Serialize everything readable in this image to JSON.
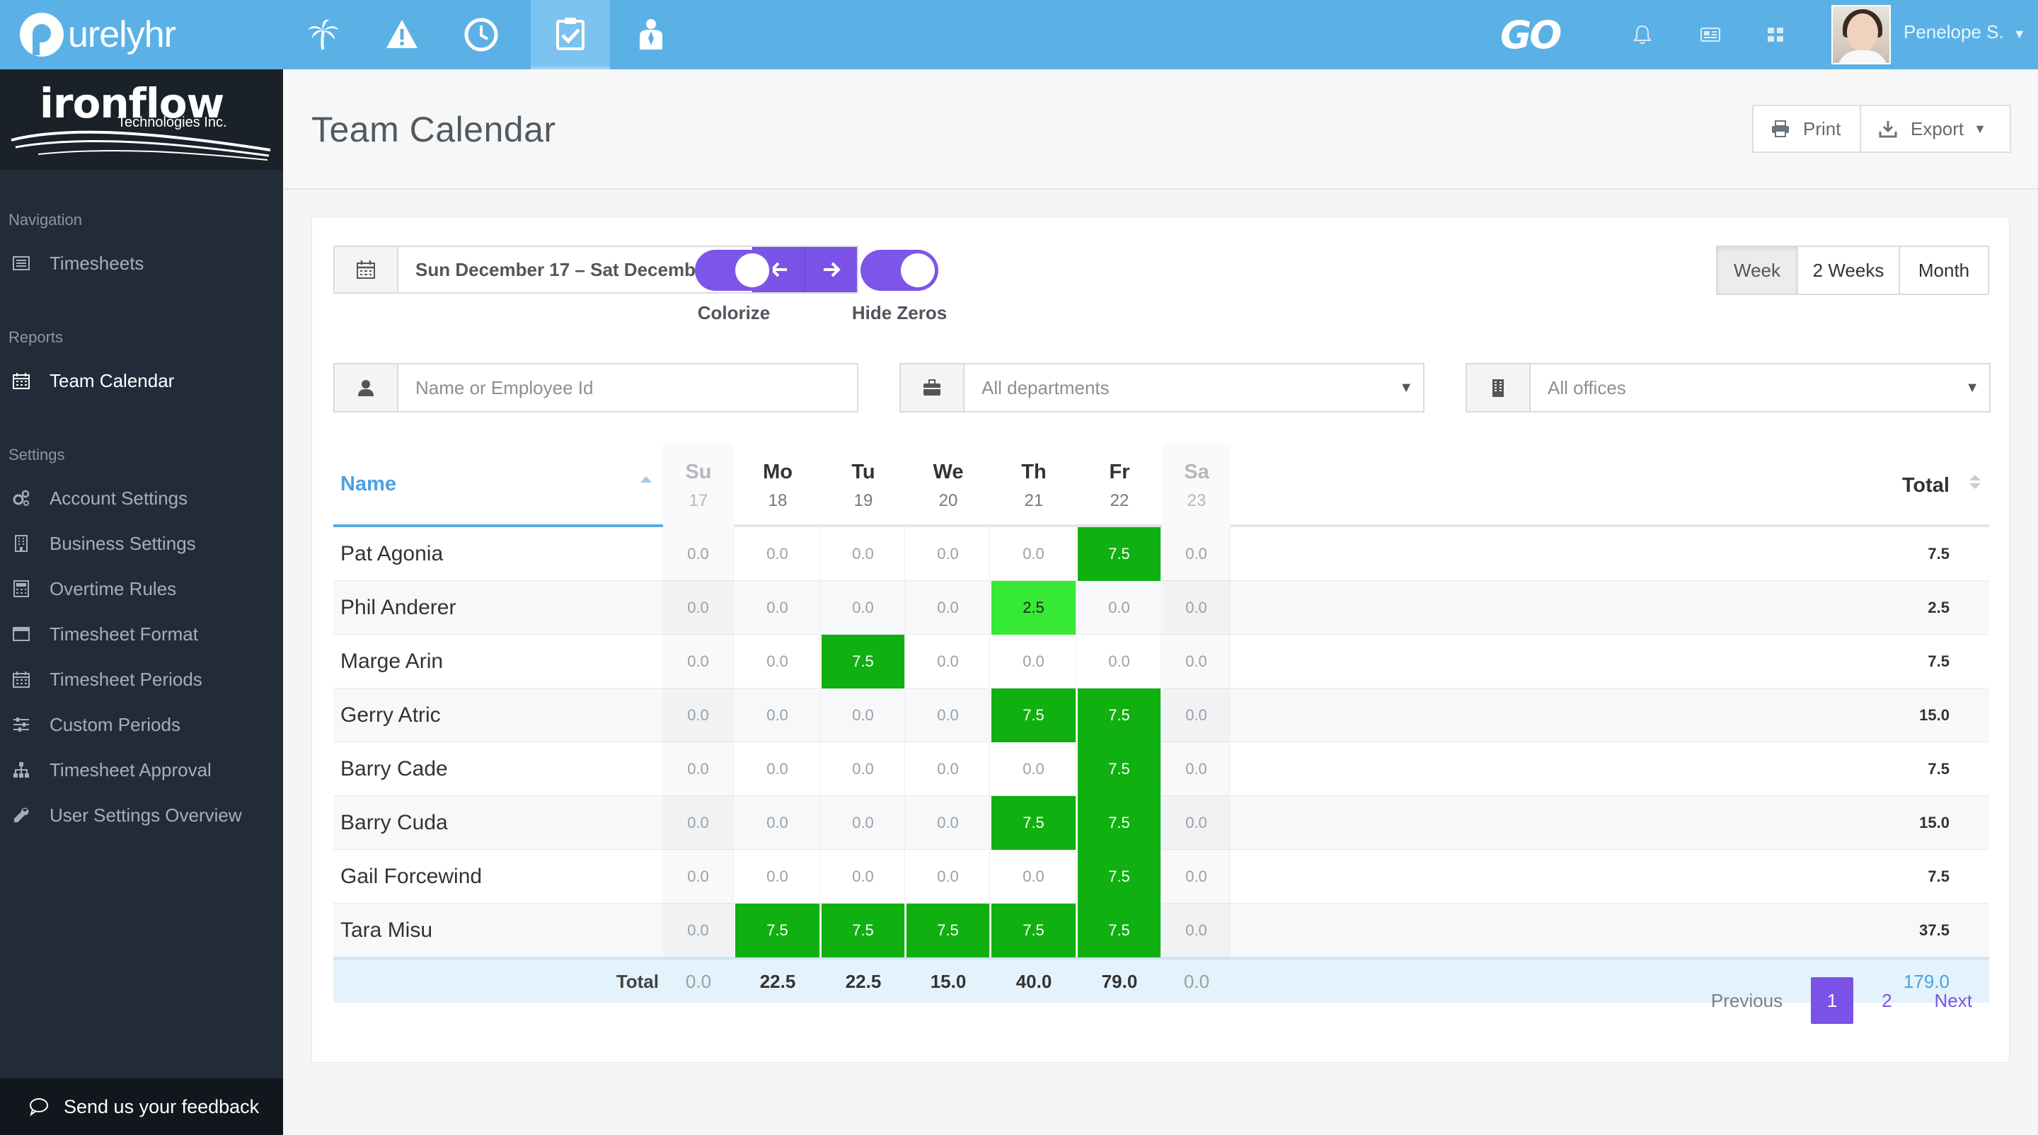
{
  "brand": {
    "name": "urelyhr"
  },
  "topnav": {
    "icons": [
      "palm-tree-icon",
      "warning-icon",
      "clock-icon",
      "clipboard-check-icon",
      "person-badge-icon"
    ],
    "active_index": 3,
    "go_logo": "GO",
    "user_name": "Penelope S."
  },
  "sidebar": {
    "company": {
      "name": "ironflow",
      "tagline": "Technologies Inc."
    },
    "sections": {
      "navigation": "Navigation",
      "reports": "Reports",
      "settings": "Settings"
    },
    "navigation_items": [
      {
        "label": "Timesheets",
        "icon": "timesheet-icon"
      }
    ],
    "report_items": [
      {
        "label": "Team Calendar",
        "icon": "calendar-icon",
        "active": true
      }
    ],
    "settings_items": [
      {
        "label": "Account Settings",
        "icon": "gears-icon"
      },
      {
        "label": "Business Settings",
        "icon": "building-icon"
      },
      {
        "label": "Overtime Rules",
        "icon": "calculator-icon"
      },
      {
        "label": "Timesheet Format",
        "icon": "window-icon"
      },
      {
        "label": "Timesheet Periods",
        "icon": "calendar-icon"
      },
      {
        "label": "Custom Periods",
        "icon": "sliders-icon"
      },
      {
        "label": "Timesheet Approval",
        "icon": "sitemap-icon"
      },
      {
        "label": "User Settings Overview",
        "icon": "wrench-icon"
      }
    ],
    "feedback": "Send us your feedback"
  },
  "header": {
    "title": "Team Calendar",
    "print_label": "Print",
    "export_label": "Export"
  },
  "controls": {
    "date_range": "Sun December 17 – Sat December 23,",
    "toggles": [
      {
        "label": "Colorize",
        "on": true
      },
      {
        "label": "Hide Zeros",
        "on": true
      }
    ],
    "ranges": [
      {
        "label": "Week",
        "active": true
      },
      {
        "label": "2 Weeks",
        "active": false
      },
      {
        "label": "Month",
        "active": false
      }
    ],
    "filters": {
      "employee_placeholder": "Name or Employee Id",
      "department": "All departments",
      "office": "All offices"
    }
  },
  "table": {
    "name_header": "Name",
    "total_header": "Total",
    "days": [
      {
        "name": "Su",
        "num": "17",
        "weekend": true
      },
      {
        "name": "Mo",
        "num": "18",
        "weekend": false
      },
      {
        "name": "Tu",
        "num": "19",
        "weekend": false
      },
      {
        "name": "We",
        "num": "20",
        "weekend": false
      },
      {
        "name": "Th",
        "num": "21",
        "weekend": false
      },
      {
        "name": "Fr",
        "num": "22",
        "weekend": false
      },
      {
        "name": "Sa",
        "num": "23",
        "weekend": true
      }
    ],
    "rows": [
      {
        "name": "Pat Agonia",
        "hours": [
          "0.0",
          "0.0",
          "0.0",
          "0.0",
          "0.0",
          "7.5",
          "0.0"
        ],
        "total": "7.5"
      },
      {
        "name": "Phil Anderer",
        "hours": [
          "0.0",
          "0.0",
          "0.0",
          "0.0",
          "2.5",
          "0.0",
          "0.0"
        ],
        "total": "2.5"
      },
      {
        "name": "Marge Arin",
        "hours": [
          "0.0",
          "0.0",
          "7.5",
          "0.0",
          "0.0",
          "0.0",
          "0.0"
        ],
        "total": "7.5"
      },
      {
        "name": "Gerry Atric",
        "hours": [
          "0.0",
          "0.0",
          "0.0",
          "0.0",
          "7.5",
          "7.5",
          "0.0"
        ],
        "total": "15.0"
      },
      {
        "name": "Barry Cade",
        "hours": [
          "0.0",
          "0.0",
          "0.0",
          "0.0",
          "0.0",
          "7.5",
          "0.0"
        ],
        "total": "7.5"
      },
      {
        "name": "Barry Cuda",
        "hours": [
          "0.0",
          "0.0",
          "0.0",
          "0.0",
          "7.5",
          "7.5",
          "0.0"
        ],
        "total": "15.0"
      },
      {
        "name": "Gail Forcewind",
        "hours": [
          "0.0",
          "0.0",
          "0.0",
          "0.0",
          "0.0",
          "7.5",
          "0.0"
        ],
        "total": "7.5"
      },
      {
        "name": "Tara Misu",
        "hours": [
          "0.0",
          "7.5",
          "7.5",
          "7.5",
          "7.5",
          "7.5",
          "0.0"
        ],
        "total": "37.5"
      }
    ],
    "footer": {
      "label": "Total",
      "day_totals": [
        "0.0",
        "22.5",
        "22.5",
        "15.0",
        "40.0",
        "79.0",
        "0.0"
      ],
      "grand_total": "179.0"
    }
  },
  "pagination": {
    "previous": "Previous",
    "pages": [
      "1",
      "2"
    ],
    "active_page": "1",
    "next": "Next"
  },
  "colors": {
    "topbar": "#5bb1e6",
    "sidebar": "#222c38",
    "accent": "#7b52e6",
    "cell_full": "#0fb00f",
    "cell_partial": "#35e935",
    "link": "#4aa1e0"
  }
}
